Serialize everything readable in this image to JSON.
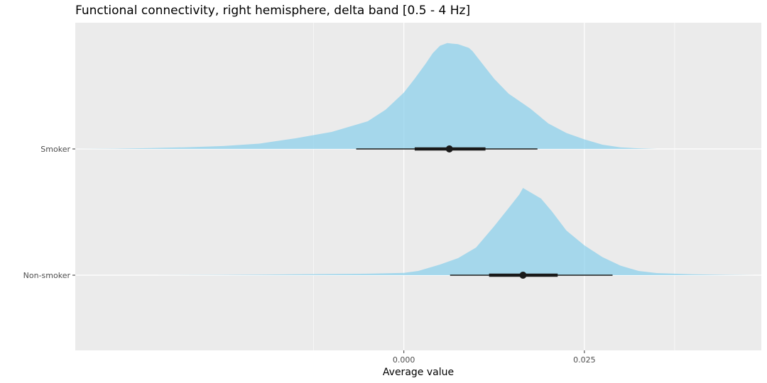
{
  "chart_data": {
    "type": "halfeye",
    "title": "Functional connectivity, right hemisphere, delta band [0.5 - 4 Hz]",
    "xlabel": "Average value",
    "ylabel": "",
    "xlim": [
      -0.0455,
      0.0495
    ],
    "x_ticks": [
      {
        "value": 0.0,
        "label": "0.000"
      },
      {
        "value": 0.025,
        "label": "0.025"
      }
    ],
    "x_minor_ticks": [
      -0.0125,
      0.0375
    ],
    "categories": [
      "Smoker",
      "Non-smoker"
    ],
    "grid": true,
    "legend": "none",
    "fill_color": "#87ceeb",
    "fill_opacity": 0.7,
    "panel_color": "#ebebeb",
    "interval_color": "#1a1a1a",
    "series": [
      {
        "category": "Smoker",
        "median": 0.0063,
        "interval_66": [
          0.0015,
          0.0113
        ],
        "interval_95": [
          -0.0066,
          0.0185
        ],
        "density": [
          [
            -0.0457,
            0.0
          ],
          [
            -0.04,
            0.003
          ],
          [
            -0.035,
            0.008
          ],
          [
            -0.03,
            0.016
          ],
          [
            -0.025,
            0.027
          ],
          [
            -0.02,
            0.05
          ],
          [
            -0.015,
            0.1
          ],
          [
            -0.01,
            0.16
          ],
          [
            -0.0075,
            0.21
          ],
          [
            -0.005,
            0.26
          ],
          [
            -0.0025,
            0.37
          ],
          [
            0.0,
            0.53
          ],
          [
            0.0015,
            0.66
          ],
          [
            0.003,
            0.8
          ],
          [
            0.004,
            0.9
          ],
          [
            0.005,
            0.97
          ],
          [
            0.006,
            0.995
          ],
          [
            0.0075,
            0.985
          ],
          [
            0.009,
            0.95
          ],
          [
            0.0095,
            0.92
          ],
          [
            0.011,
            0.79
          ],
          [
            0.0125,
            0.66
          ],
          [
            0.0145,
            0.52
          ],
          [
            0.0175,
            0.38
          ],
          [
            0.02,
            0.24
          ],
          [
            0.0225,
            0.15
          ],
          [
            0.025,
            0.09
          ],
          [
            0.0275,
            0.04
          ],
          [
            0.03,
            0.015
          ],
          [
            0.0325,
            0.006
          ],
          [
            0.035,
            0.0
          ]
        ]
      },
      {
        "category": "Non-smoker",
        "median": 0.0165,
        "interval_66": [
          0.0118,
          0.0213
        ],
        "interval_95": [
          0.0064,
          0.0289
        ],
        "density": [
          [
            -0.0345,
            0.0
          ],
          [
            -0.025,
            0.003
          ],
          [
            -0.015,
            0.008
          ],
          [
            -0.005,
            0.014
          ],
          [
            0.0,
            0.022
          ],
          [
            0.002,
            0.04
          ],
          [
            0.005,
            0.1
          ],
          [
            0.0075,
            0.16
          ],
          [
            0.01,
            0.26
          ],
          [
            0.0125,
            0.46
          ],
          [
            0.0145,
            0.63
          ],
          [
            0.016,
            0.76
          ],
          [
            0.0165,
            0.82
          ],
          [
            0.0175,
            0.78
          ],
          [
            0.019,
            0.72
          ],
          [
            0.0205,
            0.6
          ],
          [
            0.0225,
            0.42
          ],
          [
            0.025,
            0.28
          ],
          [
            0.0275,
            0.17
          ],
          [
            0.03,
            0.09
          ],
          [
            0.0325,
            0.04
          ],
          [
            0.035,
            0.02
          ],
          [
            0.04,
            0.008
          ],
          [
            0.045,
            0.003
          ],
          [
            0.0485,
            0.0
          ]
        ]
      }
    ]
  }
}
